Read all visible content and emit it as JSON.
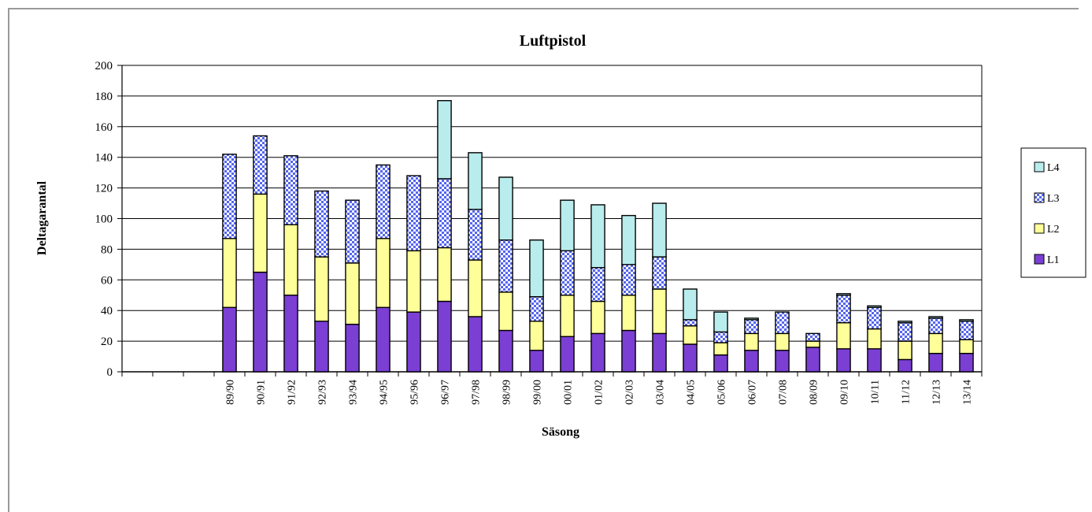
{
  "chart_data": {
    "type": "bar",
    "stacked": true,
    "title": "Luftpistol",
    "xlabel": "Säsong",
    "ylabel": "Deltagarantal",
    "ylim": [
      0,
      200
    ],
    "yticks": [
      0,
      20,
      40,
      60,
      80,
      100,
      120,
      140,
      160,
      180,
      200
    ],
    "grid": true,
    "legend_position": "right",
    "categories": [
      "",
      "",
      "",
      "89/90",
      "90/91",
      "91/92",
      "92/93",
      "93/94",
      "94/95",
      "95/96",
      "96/97",
      "97/98",
      "98/99",
      "99/00",
      "00/01",
      "01/02",
      "02/03",
      "03/04",
      "04/05",
      "05/06",
      "06/07",
      "07/08",
      "08/09",
      "09/10",
      "10/11",
      "11/12",
      "12/13",
      "13/14"
    ],
    "series": [
      {
        "name": "L1",
        "color": "#7b3fd4",
        "pattern": "solid",
        "values": [
          0,
          0,
          0,
          42,
          65,
          50,
          33,
          31,
          42,
          39,
          46,
          36,
          27,
          14,
          23,
          25,
          27,
          25,
          18,
          11,
          14,
          14,
          16,
          15,
          15,
          8,
          12,
          12
        ]
      },
      {
        "name": "L2",
        "color": "#ffff99",
        "pattern": "solid",
        "values": [
          0,
          0,
          0,
          45,
          51,
          46,
          42,
          40,
          45,
          40,
          35,
          37,
          25,
          19,
          27,
          21,
          23,
          29,
          12,
          8,
          11,
          11,
          4,
          17,
          13,
          12,
          13,
          9
        ]
      },
      {
        "name": "L3",
        "color": "#5566ee",
        "pattern": "checker",
        "values": [
          0,
          0,
          0,
          55,
          38,
          45,
          43,
          41,
          48,
          49,
          45,
          33,
          34,
          16,
          29,
          22,
          20,
          21,
          4,
          7,
          9,
          14,
          5,
          18,
          14,
          12,
          10,
          12
        ]
      },
      {
        "name": "L4",
        "color": "#b9ecec",
        "pattern": "solid",
        "values": [
          0,
          0,
          0,
          0,
          0,
          0,
          0,
          0,
          0,
          0,
          51,
          37,
          41,
          37,
          33,
          41,
          32,
          35,
          20,
          13,
          1,
          0,
          0,
          1,
          1,
          1,
          1,
          1
        ]
      }
    ]
  }
}
